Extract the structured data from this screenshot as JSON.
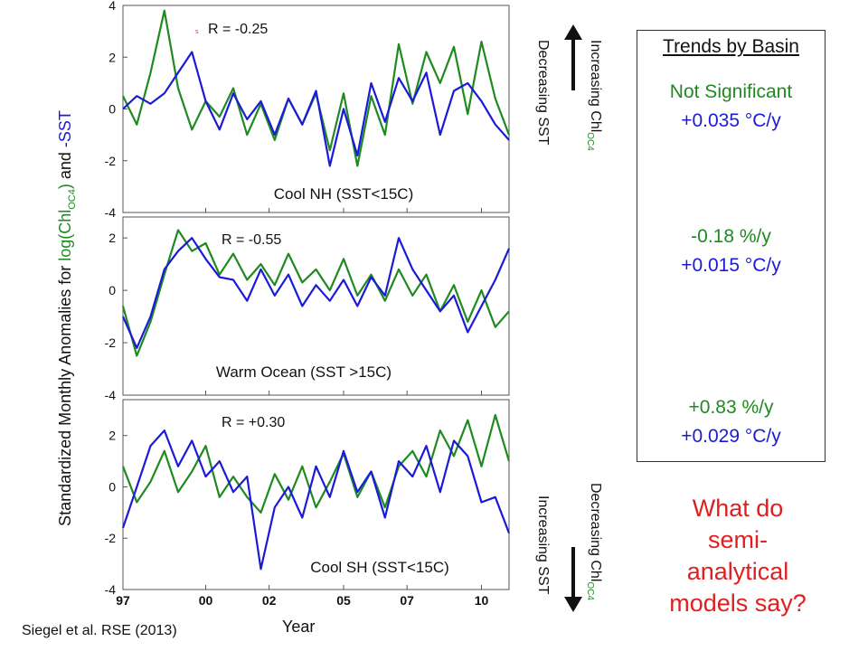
{
  "colors": {
    "chl": "#1f8a1f",
    "sst": "#1a1ad8",
    "text": "#111111",
    "question": "#e02020"
  },
  "y_axis_label": {
    "prefix": "Standardized Monthly Anomalies for ",
    "log_chl": "log(Chl",
    "log_chl_sub": "OC4",
    "log_chl_close": ")",
    "and": " and ",
    "neg_sst": "-SST"
  },
  "x_axis_label": "Year",
  "x_ticks": [
    "97",
    "00",
    "02",
    "05",
    "07",
    "10"
  ],
  "citation": "Siegel et al. RSE (2013)",
  "arrows": {
    "top": {
      "chl_text": "Increasing Chl",
      "chl_sub": "OC4",
      "sst_text": "Decreasing SST"
    },
    "bottom": {
      "chl_text": "Decreasing Chl",
      "chl_sub": "OC4",
      "sst_text": "Increasing SST"
    }
  },
  "trends": {
    "title": "Trends by Basin",
    "cool_nh": [
      "Not Significant",
      "+0.035 °C/y"
    ],
    "warm": [
      "-0.18 %/y",
      "+0.015 °C/y"
    ],
    "cool_sh": [
      "+0.83 %/y",
      "+0.029 °C/y"
    ]
  },
  "question": [
    "What do",
    "semi-",
    "analytical",
    "models say?"
  ],
  "chart_data": [
    {
      "type": "line",
      "title": "Cool NH (SST<15C)",
      "annotation": "R = -0.25",
      "stray_mark": "s",
      "x": [
        1997.0,
        1997.5,
        1998.0,
        1998.5,
        1999.0,
        1999.5,
        2000.0,
        2000.5,
        2001.0,
        2001.5,
        2002.0,
        2002.5,
        2003.0,
        2003.5,
        2004.0,
        2004.5,
        2005.0,
        2005.5,
        2006.0,
        2006.5,
        2007.0,
        2007.5,
        2008.0,
        2008.5,
        2009.0,
        2009.5,
        2010.0,
        2010.5,
        2011.0
      ],
      "yticks": [
        -4,
        -2,
        0,
        2,
        4
      ],
      "ylim": [
        -4,
        4
      ],
      "series": [
        {
          "key": "chl",
          "values": [
            0.5,
            -0.6,
            1.4,
            3.8,
            0.8,
            -0.8,
            0.3,
            -0.3,
            0.8,
            -1.0,
            0.2,
            -1.2,
            0.4,
            -0.6,
            0.6,
            -1.6,
            0.6,
            -2.2,
            0.5,
            -1.0,
            2.5,
            0.2,
            2.2,
            1.0,
            2.4,
            -0.2,
            2.6,
            0.4,
            -1.0
          ]
        },
        {
          "key": "sst",
          "values": [
            0.0,
            0.5,
            0.2,
            0.6,
            1.4,
            2.2,
            0.3,
            -0.8,
            0.6,
            -0.4,
            0.3,
            -1.0,
            0.4,
            -0.6,
            0.7,
            -2.2,
            0.0,
            -1.8,
            1.0,
            -0.5,
            1.2,
            0.3,
            1.4,
            -1.0,
            0.7,
            1.0,
            0.3,
            -0.6,
            -1.2
          ]
        }
      ]
    },
    {
      "type": "line",
      "title": "Warm Ocean (SST >15C)",
      "annotation": "R = -0.55",
      "x": [
        1997.0,
        1997.5,
        1998.0,
        1998.5,
        1999.0,
        1999.5,
        2000.0,
        2000.5,
        2001.0,
        2001.5,
        2002.0,
        2002.5,
        2003.0,
        2003.5,
        2004.0,
        2004.5,
        2005.0,
        2005.5,
        2006.0,
        2006.5,
        2007.0,
        2007.5,
        2008.0,
        2008.5,
        2009.0,
        2009.5,
        2010.0,
        2010.5,
        2011.0
      ],
      "yticks": [
        -4,
        -2,
        0,
        2
      ],
      "ylim": [
        -4,
        2.8
      ],
      "series": [
        {
          "key": "chl",
          "values": [
            -0.6,
            -2.5,
            -1.2,
            0.6,
            2.3,
            1.5,
            1.8,
            0.6,
            1.4,
            0.4,
            1.0,
            0.2,
            1.4,
            0.3,
            0.8,
            0.0,
            1.2,
            -0.2,
            0.6,
            -0.4,
            0.8,
            -0.2,
            0.6,
            -0.8,
            0.2,
            -1.2,
            0.0,
            -1.4,
            -0.8
          ]
        },
        {
          "key": "sst",
          "values": [
            -1.0,
            -2.2,
            -1.0,
            0.8,
            1.5,
            2.0,
            1.2,
            0.5,
            0.4,
            -0.4,
            0.8,
            -0.2,
            0.6,
            -0.6,
            0.2,
            -0.4,
            0.4,
            -0.6,
            0.5,
            -0.2,
            2.0,
            0.8,
            0.0,
            -0.8,
            -0.2,
            -1.6,
            -0.6,
            0.4,
            1.6
          ]
        }
      ]
    },
    {
      "type": "line",
      "title": "Cool SH (SST<15C)",
      "annotation": "R = +0.30",
      "x": [
        1997.0,
        1997.5,
        1998.0,
        1998.5,
        1999.0,
        1999.5,
        2000.0,
        2000.5,
        2001.0,
        2001.5,
        2002.0,
        2002.5,
        2003.0,
        2003.5,
        2004.0,
        2004.5,
        2005.0,
        2005.5,
        2006.0,
        2006.5,
        2007.0,
        2007.5,
        2008.0,
        2008.5,
        2009.0,
        2009.5,
        2010.0,
        2010.5,
        2011.0
      ],
      "yticks": [
        -4,
        -2,
        0,
        2
      ],
      "ylim": [
        -4,
        3.4
      ],
      "series": [
        {
          "key": "chl",
          "values": [
            0.8,
            -0.6,
            0.2,
            1.4,
            -0.2,
            0.6,
            1.6,
            -0.4,
            0.4,
            -0.4,
            -1.0,
            0.5,
            -0.5,
            0.8,
            -0.8,
            0.2,
            1.3,
            -0.4,
            0.6,
            -0.8,
            0.8,
            1.4,
            0.4,
            2.2,
            1.2,
            2.6,
            0.8,
            2.8,
            1.0
          ]
        },
        {
          "key": "sst",
          "values": [
            -1.6,
            0.0,
            1.6,
            2.2,
            0.8,
            1.8,
            0.4,
            1.0,
            -0.2,
            0.4,
            -3.2,
            -0.8,
            0.0,
            -1.2,
            0.8,
            -0.4,
            1.4,
            -0.2,
            0.6,
            -1.2,
            1.0,
            0.4,
            1.6,
            -0.2,
            1.8,
            1.2,
            -0.6,
            -0.4,
            -1.8
          ]
        }
      ]
    }
  ]
}
